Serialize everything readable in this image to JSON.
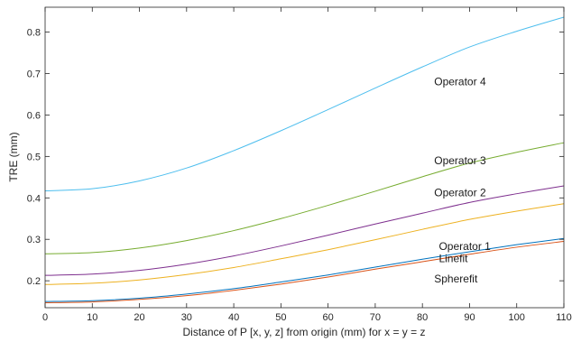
{
  "chart_data": {
    "type": "line",
    "title": "",
    "xlabel": "Distance of P [x, y, z] from origin (mm) for x = y = z",
    "ylabel": "TRE (mm)",
    "xlim": [
      0,
      110
    ],
    "ylim": [
      0.135,
      0.86
    ],
    "xticks": [
      0,
      10,
      20,
      30,
      40,
      50,
      60,
      70,
      80,
      90,
      100,
      110
    ],
    "yticks": [
      0.2,
      0.3,
      0.4,
      0.5,
      0.6,
      0.7,
      0.8
    ],
    "grid": false,
    "legend": "none",
    "x": [
      0,
      10,
      20,
      30,
      40,
      50,
      60,
      70,
      80,
      90,
      100,
      110
    ],
    "series": [
      {
        "name": "Operator 4",
        "color": "#4DBEEE",
        "values": [
          0.417,
          0.422,
          0.441,
          0.472,
          0.514,
          0.562,
          0.613,
          0.665,
          0.716,
          0.764,
          0.802,
          0.836
        ]
      },
      {
        "name": "Operator 3",
        "color": "#77AC30",
        "values": [
          0.265,
          0.268,
          0.279,
          0.297,
          0.321,
          0.35,
          0.382,
          0.416,
          0.451,
          0.484,
          0.51,
          0.533
        ]
      },
      {
        "name": "Operator 2",
        "color": "#7E2F8E",
        "values": [
          0.213,
          0.216,
          0.225,
          0.24,
          0.26,
          0.284,
          0.31,
          0.337,
          0.363,
          0.389,
          0.41,
          0.429
        ]
      },
      {
        "name": "Operator 1",
        "color": "#EDB120",
        "values": [
          0.191,
          0.194,
          0.202,
          0.215,
          0.232,
          0.253,
          0.275,
          0.299,
          0.324,
          0.348,
          0.368,
          0.386
        ]
      },
      {
        "name": "Linefit",
        "color": "#0072BD",
        "values": [
          0.15,
          0.152,
          0.158,
          0.168,
          0.181,
          0.197,
          0.214,
          0.233,
          0.252,
          0.27,
          0.287,
          0.302
        ]
      },
      {
        "name": "Spherefit",
        "color": "#D95319",
        "values": [
          0.147,
          0.149,
          0.155,
          0.164,
          0.177,
          0.192,
          0.209,
          0.228,
          0.246,
          0.264,
          0.281,
          0.295
        ]
      }
    ],
    "annotations": [
      {
        "text": "Operator 4",
        "x": 82.5,
        "y": 0.68
      },
      {
        "text": "Operator 3",
        "x": 82.5,
        "y": 0.49
      },
      {
        "text": "Operator 2",
        "x": 82.5,
        "y": 0.413
      },
      {
        "text": "Operator 1",
        "x": 83.5,
        "y": 0.283
      },
      {
        "text": "Linefit",
        "x": 83.5,
        "y": 0.254
      },
      {
        "text": "Spherefit",
        "x": 82.5,
        "y": 0.205
      }
    ]
  }
}
